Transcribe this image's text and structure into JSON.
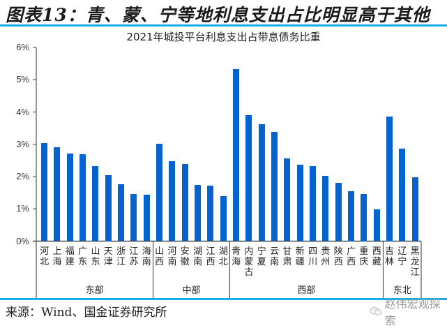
{
  "figure": {
    "title": "图表13：青、蒙、宁等地利息支出占比明显高于其他",
    "source": "来源：Wind、国金证券研究所",
    "watermark": "赵伟宏观探索",
    "accent_color": "#17aee6",
    "bar_color": "#0563cf"
  },
  "chart_data": {
    "type": "bar",
    "title": "2021年城投平台利息支出占带息债务比重",
    "xlabel": "",
    "ylabel": "",
    "ylim": [
      0,
      6
    ],
    "yticks": [
      "0%",
      "1%",
      "2%",
      "3%",
      "4%",
      "5%",
      "6%"
    ],
    "grid": false,
    "legend": null,
    "unit": "%",
    "categories": [
      "河北",
      "上海",
      "福建",
      "广东",
      "山东",
      "天津",
      "浙江",
      "江苏",
      "海南",
      "山西",
      "河南",
      "安徽",
      "湖南",
      "江西",
      "湖北",
      "青海",
      "内蒙古",
      "宁夏",
      "云南",
      "甘肃",
      "新疆",
      "四川",
      "贵州",
      "陕西",
      "广西",
      "重庆",
      "西藏",
      "吉林",
      "辽宁",
      "黑龙江"
    ],
    "values": [
      3.03,
      2.91,
      2.72,
      2.69,
      2.33,
      2.05,
      1.76,
      1.46,
      1.44,
      3.02,
      2.48,
      2.39,
      1.73,
      1.71,
      1.39,
      5.33,
      3.91,
      3.62,
      3.39,
      2.57,
      2.37,
      2.33,
      2.03,
      1.81,
      1.55,
      1.45,
      0.98,
      3.85,
      2.87,
      1.98
    ],
    "groups": [
      {
        "name": "东部",
        "start": 0,
        "end": 8
      },
      {
        "name": "中部",
        "start": 9,
        "end": 14
      },
      {
        "name": "西部",
        "start": 15,
        "end": 26
      },
      {
        "name": "东北",
        "start": 27,
        "end": 29
      }
    ]
  }
}
